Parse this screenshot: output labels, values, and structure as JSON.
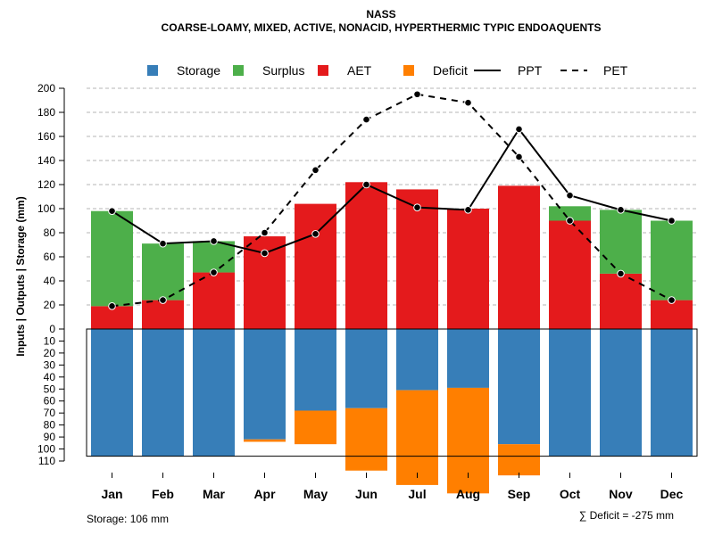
{
  "chart_data": {
    "type": "bar",
    "title": "NASS",
    "subtitle": "COARSE-LOAMY, MIXED, ACTIVE, NONACID, HYPERTHERMIC TYPIC ENDOAQUENTS",
    "ylabel": "Inputs | Outputs | Storage     (mm)",
    "categories": [
      "Jan",
      "Feb",
      "Mar",
      "Apr",
      "May",
      "Jun",
      "Jul",
      "Aug",
      "Sep",
      "Oct",
      "Nov",
      "Dec"
    ],
    "upper_ylim": [
      0,
      200
    ],
    "upper_ticks": [
      "0",
      "20",
      "40",
      "60",
      "80",
      "100",
      "120",
      "140",
      "160",
      "180",
      "200"
    ],
    "lower_ylim": [
      0,
      110
    ],
    "lower_ticks": [
      "0",
      "10",
      "20",
      "30",
      "40",
      "50",
      "60",
      "70",
      "80",
      "90",
      "100",
      "110"
    ],
    "storage_capacity": 106,
    "legend": [
      {
        "label": "Storage",
        "color": "#377EB8",
        "kind": "box"
      },
      {
        "label": "Surplus",
        "color": "#4DAF4A",
        "kind": "box"
      },
      {
        "label": "AET",
        "color": "#E41A1C",
        "kind": "box"
      },
      {
        "label": "Deficit",
        "color": "#FF7F00",
        "kind": "box"
      },
      {
        "label": "PPT",
        "color": "#000000",
        "kind": "solid"
      },
      {
        "label": "PET",
        "color": "#000000",
        "kind": "dashed"
      }
    ],
    "series": [
      {
        "name": "AET",
        "color": "#E41A1C",
        "values": [
          19,
          24,
          47,
          77,
          104,
          122,
          116,
          100,
          119,
          90,
          46,
          24
        ]
      },
      {
        "name": "Surplus",
        "color": "#4DAF4A",
        "values": [
          79,
          47,
          26,
          0,
          0,
          0,
          0,
          0,
          0,
          12,
          53,
          66
        ]
      },
      {
        "name": "PPT",
        "color": "#000000",
        "values": [
          98,
          71,
          73,
          63,
          79,
          120,
          101,
          99,
          166,
          111,
          99,
          90
        ]
      },
      {
        "name": "PET",
        "color": "#000000",
        "values": [
          19,
          24,
          47,
          80,
          132,
          174,
          195,
          188,
          143,
          90,
          46,
          24
        ]
      },
      {
        "name": "Storage",
        "color": "#377EB8",
        "values": [
          106,
          106,
          106,
          92,
          68,
          66,
          51,
          49,
          96,
          106,
          106,
          106
        ]
      },
      {
        "name": "Deficit",
        "color": "#FF7F00",
        "values": [
          0,
          0,
          0,
          2,
          28,
          52,
          79,
          88,
          26,
          0,
          0,
          0
        ]
      }
    ],
    "storage_note": "Storage: 106 mm",
    "deficit_note": "∑ Deficit = -275 mm"
  }
}
